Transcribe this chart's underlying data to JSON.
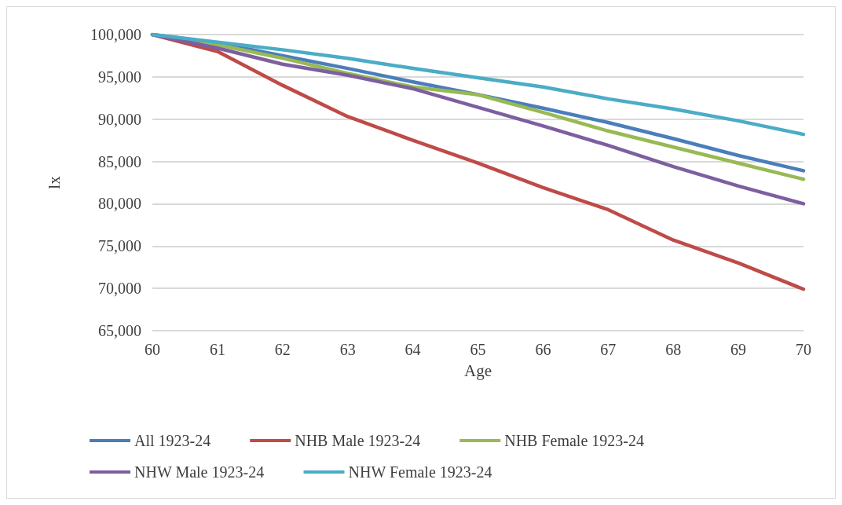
{
  "chart_data": {
    "type": "line",
    "xlabel": "Age",
    "ylabel": "lx",
    "categories": [
      "60",
      "61",
      "62",
      "63",
      "64",
      "65",
      "66",
      "67",
      "68",
      "69",
      "70"
    ],
    "series": [
      {
        "name": "All 1923-24",
        "color": "#4a7ebb",
        "values": [
          100000,
          99000,
          97500,
          96000,
          94400,
          92900,
          91300,
          89600,
          87700,
          85700,
          83900
        ]
      },
      {
        "name": "NHB Male 1923-24",
        "color": "#be4b48",
        "values": [
          100000,
          98000,
          94000,
          90300,
          87500,
          84800,
          81900,
          79300,
          75700,
          73000,
          69900
        ]
      },
      {
        "name": "NHB Female 1923-24",
        "color": "#98b954",
        "values": [
          100000,
          98800,
          97200,
          95400,
          93800,
          92900,
          90800,
          88600,
          86700,
          84800,
          82900
        ]
      },
      {
        "name": "NHW Male 1923-24",
        "color": "#7d5fa0",
        "values": [
          100000,
          98400,
          96500,
          95200,
          93600,
          91400,
          89200,
          86900,
          84400,
          82100,
          80000
        ]
      },
      {
        "name": "NHW Female 1923-24",
        "color": "#4bacc6",
        "values": [
          100000,
          99100,
          98200,
          97200,
          96000,
          94900,
          93800,
          92400,
          91200,
          89800,
          88200
        ]
      }
    ],
    "ylim": [
      65000,
      100000
    ],
    "yticks": [
      {
        "value": 65000,
        "label": "65,000"
      },
      {
        "value": 70000,
        "label": "70,000"
      },
      {
        "value": 75000,
        "label": "75,000"
      },
      {
        "value": 80000,
        "label": "80,000"
      },
      {
        "value": 85000,
        "label": "85,000"
      },
      {
        "value": 90000,
        "label": "90,000"
      },
      {
        "value": 95000,
        "label": "95,000"
      },
      {
        "value": 100000,
        "label": "100,000"
      }
    ],
    "grid": "y",
    "legend": "bottom",
    "marker": "none",
    "line_style": "solid"
  }
}
